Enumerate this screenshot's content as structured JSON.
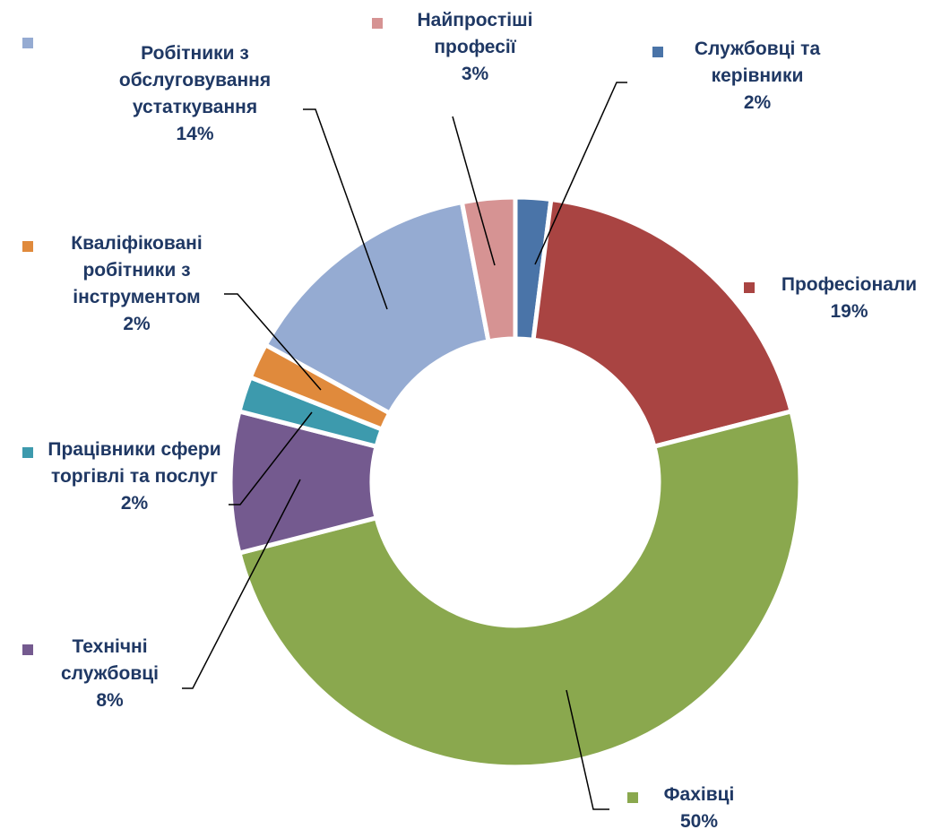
{
  "chart_data": {
    "type": "donut",
    "categories": [
      "Службовці та керівники",
      "Професіонали",
      "Фахівці",
      "Технічні службовці",
      "Працівники сфери торгівлі та послуг",
      "Кваліфіковані робітники з інструментом",
      "Робітники з обслуговування устаткування",
      "Найпростіші професії"
    ],
    "values": [
      2,
      19,
      50,
      8,
      2,
      2,
      14,
      3
    ],
    "value_labels": [
      "2%",
      "19%",
      "50%",
      "8%",
      "2%",
      "2%",
      "14%",
      "3%"
    ],
    "colors": [
      "#4a74a8",
      "#a94442",
      "#8aa84e",
      "#745a8f",
      "#3d9aad",
      "#e08a3c",
      "#95abd2",
      "#d69393"
    ]
  }
}
